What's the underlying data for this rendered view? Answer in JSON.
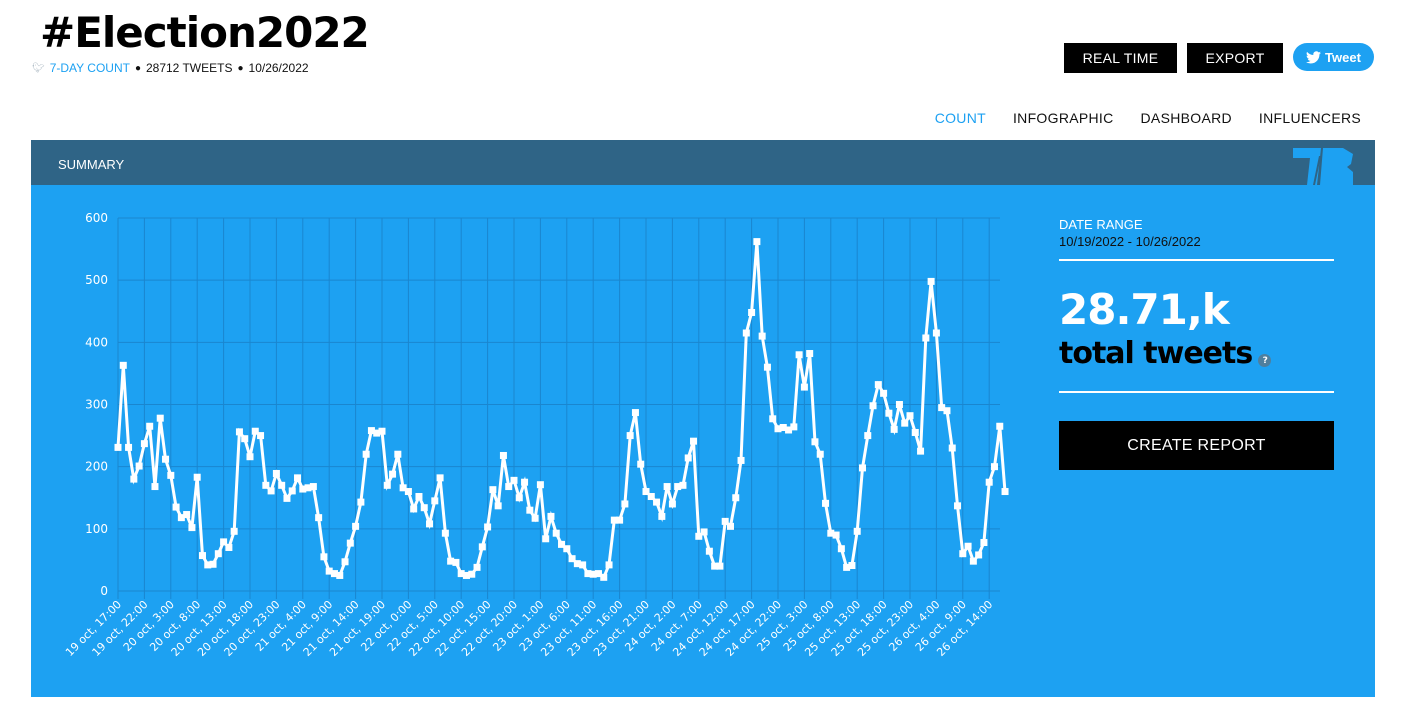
{
  "header": {
    "title": "#Election2022",
    "meta": {
      "count_link": "7-DAY COUNT",
      "tweets": "28712 TWEETS",
      "date": "10/26/2022"
    },
    "buttons": {
      "real_time": "REAL TIME",
      "export": "EXPORT",
      "tweet": "Tweet"
    }
  },
  "nav": {
    "items": [
      "COUNT",
      "INFOGRAPHIC",
      "DASHBOARD",
      "INFLUENCERS"
    ],
    "active": "COUNT"
  },
  "summary": {
    "label": "SUMMARY",
    "logo": "TB"
  },
  "side": {
    "date_range_label": "DATE RANGE",
    "date_range_value": "10/19/2022 - 10/26/2022",
    "total": "28.71,k",
    "total_label": "total tweets",
    "help": "?",
    "create_report": "CREATE REPORT"
  },
  "colors": {
    "panel": "#1da1f2",
    "summary_bar": "#2f6486",
    "accent": "#1da1f2",
    "line": "#ffffff"
  },
  "chart_data": {
    "type": "line",
    "title": "",
    "xlabel": "",
    "ylabel": "",
    "ylim": [
      0,
      600
    ],
    "yticks": [
      0,
      100,
      200,
      300,
      400,
      500,
      600
    ],
    "grid": true,
    "legend": null,
    "x_tick_labels": [
      "19 oct, 17:00",
      "19 oct, 22:00",
      "20 oct, 3:00",
      "20 oct, 8:00",
      "20 oct, 13:00",
      "20 oct, 18:00",
      "20 oct, 23:00",
      "21 oct, 4:00",
      "21 oct, 9:00",
      "21 oct, 14:00",
      "21 oct, 19:00",
      "22 oct, 0:00",
      "22 oct, 5:00",
      "22 oct, 10:00",
      "22 oct, 15:00",
      "22 oct, 20:00",
      "23 oct, 1:00",
      "23 oct, 6:00",
      "23 oct, 11:00",
      "23 oct, 16:00",
      "23 oct, 21:00",
      "24 oct, 2:00",
      "24 oct, 7:00",
      "24 oct, 12:00",
      "24 oct, 17:00",
      "24 oct, 22:00",
      "25 oct, 3:00",
      "25 oct, 8:00",
      "25 oct, 13:00",
      "25 oct, 18:00",
      "25 oct, 23:00",
      "26 oct, 4:00",
      "26 oct, 9:00",
      "26 oct, 14:00"
    ],
    "x_start": "19 oct, 17:00",
    "x_step_hours": 1,
    "series": [
      {
        "name": "tweets",
        "values": [
          231,
          363,
          231,
          180,
          201,
          237,
          265,
          168,
          278,
          212,
          186,
          135,
          118,
          123,
          102,
          183,
          57,
          42,
          43,
          60,
          79,
          70,
          96,
          256,
          245,
          216,
          257,
          250,
          170,
          161,
          189,
          170,
          149,
          161,
          182,
          164,
          166,
          168,
          118,
          55,
          32,
          28,
          25,
          47,
          77,
          104,
          143,
          220,
          258,
          254,
          257,
          170,
          188,
          220,
          166,
          160,
          132,
          152,
          134,
          108,
          145,
          182,
          93,
          48,
          46,
          28,
          25,
          27,
          38,
          71,
          103,
          163,
          137,
          218,
          168,
          178,
          150,
          175,
          130,
          117,
          171,
          84,
          120,
          93,
          75,
          68,
          52,
          44,
          42,
          28,
          27,
          28,
          22,
          42,
          114,
          114,
          140,
          250,
          287,
          204,
          160,
          152,
          143,
          120,
          168,
          140,
          168,
          170,
          214,
          241,
          88,
          95,
          64,
          40,
          40,
          112,
          104,
          150,
          210,
          415,
          448,
          562,
          410,
          360,
          277,
          261,
          263,
          259,
          264,
          380,
          328,
          382,
          240,
          220,
          141,
          93,
          90,
          68,
          38,
          41,
          96,
          198,
          250,
          298,
          332,
          318,
          286,
          260,
          300,
          270,
          282,
          255,
          225,
          407,
          498,
          415,
          295,
          290,
          230,
          137,
          60,
          72,
          48,
          58,
          78,
          175,
          200,
          265,
          160
        ]
      }
    ]
  }
}
